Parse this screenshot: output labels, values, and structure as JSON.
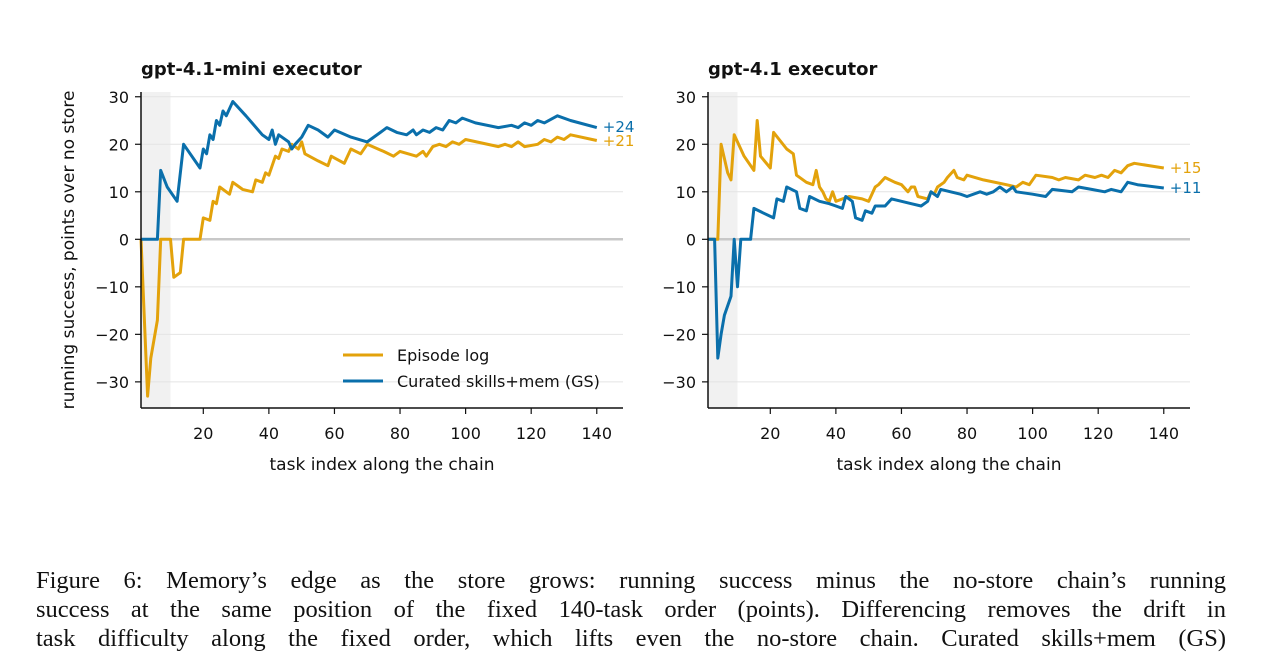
{
  "colors": {
    "episode_log": "#E3A20B",
    "curated": "#0A6FAB",
    "zero_line": "#c8c8c8",
    "grid": "#e4e4e4",
    "warmup_band": "#f1f1f1"
  },
  "shared_ylabel": "running success, points over no store",
  "legend": {
    "placement": "lower-right of left panel",
    "entries": [
      "Episode log",
      "Curated skills+mem (GS)"
    ]
  },
  "chart_data": [
    {
      "type": "line",
      "title": "gpt-4.1-mini executor",
      "xlabel": "task index along the chain",
      "ylabel": "running success, points over no store",
      "xlim": [
        1,
        148
      ],
      "ylim": [
        -35.5,
        31
      ],
      "xticks": [
        20,
        40,
        60,
        80,
        100,
        120,
        140
      ],
      "yticks": [
        -30,
        -20,
        -10,
        0,
        10,
        20,
        30
      ],
      "ytick_labels": [
        "−30",
        "−20",
        "−10",
        "0",
        "10",
        "20",
        "30"
      ],
      "xtick_labels": [
        "20",
        "40",
        "60",
        "80",
        "100",
        "120",
        "140"
      ],
      "shaded_x": [
        1,
        10
      ],
      "grid": "horizontal",
      "series": [
        {
          "name": "Episode log",
          "end_label": "+21",
          "points": [
            [
              1,
              0
            ],
            [
              3,
              -33
            ],
            [
              4,
              -25
            ],
            [
              6,
              -17
            ],
            [
              7,
              0
            ],
            [
              10,
              0
            ],
            [
              11,
              -8
            ],
            [
              13,
              -7
            ],
            [
              14,
              0
            ],
            [
              16,
              0
            ],
            [
              19,
              0
            ],
            [
              20,
              4.5
            ],
            [
              22,
              4
            ],
            [
              23,
              8
            ],
            [
              24,
              7.5
            ],
            [
              25,
              11
            ],
            [
              28,
              9.5
            ],
            [
              29,
              12
            ],
            [
              32,
              10.5
            ],
            [
              35,
              10
            ],
            [
              36,
              12.5
            ],
            [
              38,
              12
            ],
            [
              39,
              14
            ],
            [
              40,
              13.5
            ],
            [
              42,
              17.5
            ],
            [
              43,
              17
            ],
            [
              44,
              19
            ],
            [
              46,
              18.5
            ],
            [
              47,
              20
            ],
            [
              49,
              19
            ],
            [
              50,
              20.5
            ],
            [
              51,
              18
            ],
            [
              55,
              16.5
            ],
            [
              58,
              15.5
            ],
            [
              59,
              17.5
            ],
            [
              63,
              16
            ],
            [
              65,
              19
            ],
            [
              68,
              18
            ],
            [
              70,
              20
            ],
            [
              75,
              18.5
            ],
            [
              78,
              17.5
            ],
            [
              80,
              18.5
            ],
            [
              85,
              17.5
            ],
            [
              87,
              18.5
            ],
            [
              88,
              17.5
            ],
            [
              90,
              19.5
            ],
            [
              92,
              20
            ],
            [
              94,
              19.5
            ],
            [
              96,
              20.5
            ],
            [
              98,
              20
            ],
            [
              100,
              21
            ],
            [
              110,
              19.5
            ],
            [
              112,
              20
            ],
            [
              114,
              19.5
            ],
            [
              116,
              20.5
            ],
            [
              118,
              19.5
            ],
            [
              122,
              20
            ],
            [
              124,
              21
            ],
            [
              126,
              20.5
            ],
            [
              128,
              21.5
            ],
            [
              130,
              21
            ],
            [
              132,
              22
            ],
            [
              140,
              20.8
            ]
          ]
        },
        {
          "name": "Curated skills+mem (GS)",
          "end_label": "+24",
          "points": [
            [
              1,
              0
            ],
            [
              6,
              0
            ],
            [
              7,
              14.5
            ],
            [
              9,
              11
            ],
            [
              12,
              8
            ],
            [
              14,
              20
            ],
            [
              19,
              15
            ],
            [
              20,
              19
            ],
            [
              21,
              18
            ],
            [
              22,
              22
            ],
            [
              23,
              21
            ],
            [
              24,
              25
            ],
            [
              25,
              24
            ],
            [
              26,
              27
            ],
            [
              27,
              26
            ],
            [
              29,
              29
            ],
            [
              33,
              26
            ],
            [
              38,
              22
            ],
            [
              40,
              21
            ],
            [
              41,
              23
            ],
            [
              42,
              20
            ],
            [
              43,
              22
            ],
            [
              46,
              20.5
            ],
            [
              47,
              19
            ],
            [
              48,
              20
            ],
            [
              50,
              21.5
            ],
            [
              52,
              24
            ],
            [
              55,
              23
            ],
            [
              58,
              21.5
            ],
            [
              60,
              23
            ],
            [
              65,
              21.5
            ],
            [
              70,
              20.5
            ],
            [
              72,
              21.5
            ],
            [
              74,
              22.5
            ],
            [
              76,
              23.5
            ],
            [
              79,
              22.5
            ],
            [
              82,
              22
            ],
            [
              84,
              23
            ],
            [
              85,
              22
            ],
            [
              87,
              23
            ],
            [
              89,
              22.5
            ],
            [
              91,
              23.5
            ],
            [
              93,
              23
            ],
            [
              95,
              25
            ],
            [
              97,
              24.5
            ],
            [
              99,
              25.5
            ],
            [
              101,
              25
            ],
            [
              103,
              24.5
            ],
            [
              110,
              23.5
            ],
            [
              114,
              24
            ],
            [
              116,
              23.5
            ],
            [
              118,
              24.5
            ],
            [
              120,
              24
            ],
            [
              122,
              25
            ],
            [
              124,
              24.5
            ],
            [
              128,
              26
            ],
            [
              132,
              25
            ],
            [
              140,
              23.5
            ]
          ]
        }
      ]
    },
    {
      "type": "line",
      "title": "gpt-4.1 executor",
      "xlabel": "task index along the chain",
      "ylabel": "",
      "xlim": [
        1,
        148
      ],
      "ylim": [
        -35.5,
        31
      ],
      "xticks": [
        20,
        40,
        60,
        80,
        100,
        120,
        140
      ],
      "yticks": [
        -30,
        -20,
        -10,
        0,
        10,
        20,
        30
      ],
      "ytick_labels": [
        "−30",
        "−20",
        "−10",
        "0",
        "10",
        "20",
        "30"
      ],
      "xtick_labels": [
        "20",
        "40",
        "60",
        "80",
        "100",
        "120",
        "140"
      ],
      "shaded_x": [
        1,
        10
      ],
      "grid": "horizontal",
      "series": [
        {
          "name": "Episode log",
          "end_label": "+15",
          "points": [
            [
              1,
              0
            ],
            [
              4,
              0
            ],
            [
              5,
              20
            ],
            [
              7,
              14
            ],
            [
              8,
              12.5
            ],
            [
              9,
              22
            ],
            [
              12,
              17.5
            ],
            [
              15,
              14.5
            ],
            [
              16,
              25
            ],
            [
              17,
              17.5
            ],
            [
              20,
              15
            ],
            [
              21,
              22.5
            ],
            [
              25,
              19
            ],
            [
              27,
              18
            ],
            [
              28,
              13.5
            ],
            [
              31,
              12
            ],
            [
              33,
              11.5
            ],
            [
              34,
              14.5
            ],
            [
              35,
              11
            ],
            [
              36,
              10
            ],
            [
              37,
              8.5
            ],
            [
              38,
              8
            ],
            [
              39,
              10
            ],
            [
              40,
              8
            ],
            [
              44,
              9
            ],
            [
              48,
              8.5
            ],
            [
              50,
              8
            ],
            [
              51,
              9.5
            ],
            [
              52,
              11
            ],
            [
              53,
              11.5
            ],
            [
              55,
              13
            ],
            [
              58,
              12
            ],
            [
              60,
              11.5
            ],
            [
              62,
              10
            ],
            [
              63,
              11
            ],
            [
              64,
              11
            ],
            [
              65,
              9
            ],
            [
              68,
              8.5
            ],
            [
              69,
              10
            ],
            [
              70,
              9.5
            ],
            [
              71,
              11
            ],
            [
              73,
              12
            ],
            [
              74,
              13
            ],
            [
              76,
              14.5
            ],
            [
              77,
              13
            ],
            [
              79,
              12.5
            ],
            [
              80,
              13.5
            ],
            [
              85,
              12.5
            ],
            [
              92,
              11.5
            ],
            [
              95,
              11
            ],
            [
              97,
              12
            ],
            [
              99,
              11.5
            ],
            [
              101,
              13.5
            ],
            [
              106,
              13
            ],
            [
              108,
              12.5
            ],
            [
              110,
              13
            ],
            [
              114,
              12.5
            ],
            [
              116,
              13.5
            ],
            [
              119,
              13
            ],
            [
              121,
              13.5
            ],
            [
              123,
              13
            ],
            [
              125,
              14.5
            ],
            [
              127,
              14
            ],
            [
              129,
              15.5
            ],
            [
              131,
              16
            ],
            [
              140,
              15
            ]
          ]
        },
        {
          "name": "Curated skills+mem (GS)",
          "end_label": "+11",
          "points": [
            [
              1,
              0
            ],
            [
              3,
              0
            ],
            [
              4,
              -25
            ],
            [
              5,
              -20
            ],
            [
              6,
              -16
            ],
            [
              8,
              -12
            ],
            [
              9,
              0
            ],
            [
              10,
              -10
            ],
            [
              11,
              0
            ],
            [
              14,
              0
            ],
            [
              15,
              6.5
            ],
            [
              18,
              5.5
            ],
            [
              21,
              4.5
            ],
            [
              22,
              8.5
            ],
            [
              24,
              8
            ],
            [
              25,
              11
            ],
            [
              28,
              10
            ],
            [
              29,
              6.5
            ],
            [
              31,
              6
            ],
            [
              32,
              9
            ],
            [
              35,
              8
            ],
            [
              38,
              7.5
            ],
            [
              40,
              7
            ],
            [
              42,
              6.5
            ],
            [
              43,
              9
            ],
            [
              45,
              8
            ],
            [
              46,
              4.5
            ],
            [
              48,
              4
            ],
            [
              49,
              6
            ],
            [
              51,
              5.5
            ],
            [
              52,
              7
            ],
            [
              55,
              7
            ],
            [
              57,
              8.5
            ],
            [
              60,
              8
            ],
            [
              63,
              7.5
            ],
            [
              66,
              7
            ],
            [
              68,
              8
            ],
            [
              69,
              10
            ],
            [
              71,
              9
            ],
            [
              72,
              10.5
            ],
            [
              75,
              10
            ],
            [
              78,
              9.5
            ],
            [
              80,
              9
            ],
            [
              84,
              10
            ],
            [
              86,
              9.5
            ],
            [
              88,
              10
            ],
            [
              90,
              11
            ],
            [
              92,
              10
            ],
            [
              94,
              11
            ],
            [
              95,
              10
            ],
            [
              100,
              9.5
            ],
            [
              104,
              9
            ],
            [
              106,
              10.5
            ],
            [
              112,
              10
            ],
            [
              114,
              11
            ],
            [
              118,
              10.5
            ],
            [
              122,
              10
            ],
            [
              124,
              10.5
            ],
            [
              127,
              10
            ],
            [
              129,
              12
            ],
            [
              132,
              11.5
            ],
            [
              140,
              10.8
            ]
          ]
        }
      ]
    }
  ],
  "caption": {
    "line1": "Figure 6: Memory’s edge as the store grows: running success minus the no-store chain’s running",
    "line2": "success at the same position of the fixed 140-task order (points). Differencing removes the drift in",
    "line3": "task difficulty along the fixed order, which lifts even the no-store chain. Curated skills+mem (GS)"
  }
}
